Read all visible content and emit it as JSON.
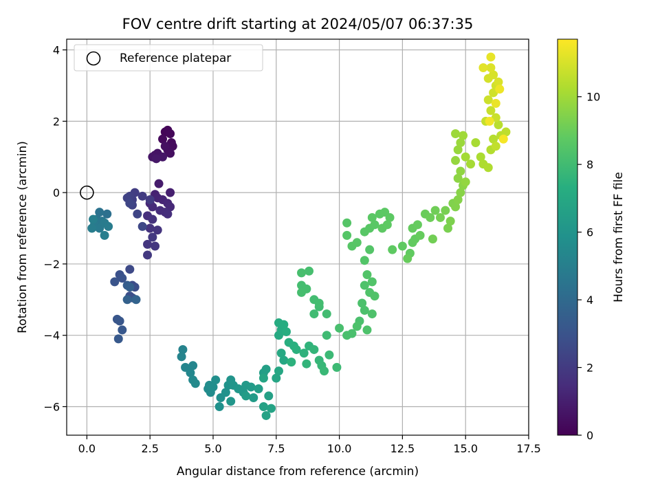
{
  "chart_data": {
    "type": "scatter",
    "title": "FOV centre drift starting at 2024/05/07 06:37:35",
    "xlabel": "Angular distance from reference (arcmin)",
    "ylabel": "Rotation from reference (arcmin)",
    "colorbar_label": "Hours from first FF file",
    "xlim": [
      -0.8,
      17.5
    ],
    "ylim": [
      -6.8,
      4.3
    ],
    "xticks": [
      0.0,
      2.5,
      5.0,
      7.5,
      10.0,
      12.5,
      15.0,
      17.5
    ],
    "xtick_labels": [
      "0.0",
      "2.5",
      "5.0",
      "7.5",
      "10.0",
      "12.5",
      "15.0",
      "17.5"
    ],
    "yticks": [
      -6,
      -4,
      -2,
      0,
      2,
      4
    ],
    "ytick_labels": [
      "−6",
      "−4",
      "−2",
      "0",
      "2",
      "4"
    ],
    "colorbar_range": [
      0,
      11.7
    ],
    "colorbar_ticks": [
      0,
      2,
      4,
      6,
      8,
      10
    ],
    "colorbar_tick_labels": [
      "0",
      "2",
      "4",
      "6",
      "8",
      "10"
    ],
    "colormap": "viridis",
    "grid": true,
    "legend": {
      "position": "top-left",
      "label": "Reference platepar"
    },
    "reference_point": {
      "x": 0.0,
      "y": 0.0
    },
    "points": [
      {
        "x": 3.1,
        "y": 1.7,
        "c": 0.1
      },
      {
        "x": 3.2,
        "y": 1.75,
        "c": 0.15
      },
      {
        "x": 3.3,
        "y": 1.65,
        "c": 0.2
      },
      {
        "x": 3.0,
        "y": 1.5,
        "c": 0.25
      },
      {
        "x": 3.35,
        "y": 1.4,
        "c": 0.3
      },
      {
        "x": 3.4,
        "y": 1.3,
        "c": 0.35
      },
      {
        "x": 3.2,
        "y": 1.2,
        "c": 0.4
      },
      {
        "x": 3.3,
        "y": 1.1,
        "c": 0.45
      },
      {
        "x": 3.1,
        "y": 1.3,
        "c": 0.5
      },
      {
        "x": 2.7,
        "y": 1.05,
        "c": 0.55
      },
      {
        "x": 2.8,
        "y": 1.1,
        "c": 0.6
      },
      {
        "x": 2.6,
        "y": 1.0,
        "c": 0.65
      },
      {
        "x": 3.0,
        "y": 1.0,
        "c": 0.7
      },
      {
        "x": 2.75,
        "y": 0.95,
        "c": 0.75
      },
      {
        "x": 2.85,
        "y": 0.25,
        "c": 0.9
      },
      {
        "x": 3.3,
        "y": 0.0,
        "c": 1.0
      },
      {
        "x": 2.7,
        "y": -0.05,
        "c": 1.1
      },
      {
        "x": 2.8,
        "y": -0.15,
        "c": 1.15
      },
      {
        "x": 3.0,
        "y": -0.2,
        "c": 1.2
      },
      {
        "x": 2.5,
        "y": -0.3,
        "c": 1.25
      },
      {
        "x": 3.2,
        "y": -0.3,
        "c": 1.3
      },
      {
        "x": 3.3,
        "y": -0.4,
        "c": 1.35
      },
      {
        "x": 2.6,
        "y": -0.4,
        "c": 1.4
      },
      {
        "x": 2.9,
        "y": -0.5,
        "c": 1.45
      },
      {
        "x": 3.1,
        "y": -0.55,
        "c": 1.5
      },
      {
        "x": 3.2,
        "y": -0.6,
        "c": 1.55
      },
      {
        "x": 2.4,
        "y": -0.65,
        "c": 1.6
      },
      {
        "x": 2.6,
        "y": -0.75,
        "c": 1.65
      },
      {
        "x": 2.5,
        "y": -1.0,
        "c": 1.7
      },
      {
        "x": 2.8,
        "y": -1.05,
        "c": 1.75
      },
      {
        "x": 2.4,
        "y": -1.45,
        "c": 1.8
      },
      {
        "x": 2.7,
        "y": -1.5,
        "c": 1.85
      },
      {
        "x": 2.6,
        "y": -1.25,
        "c": 1.9
      },
      {
        "x": 2.4,
        "y": -1.75,
        "c": 1.95
      },
      {
        "x": 2.5,
        "y": -0.2,
        "c": 2.0
      },
      {
        "x": 2.2,
        "y": -0.1,
        "c": 2.05
      },
      {
        "x": 1.9,
        "y": 0.0,
        "c": 2.1
      },
      {
        "x": 1.8,
        "y": -0.2,
        "c": 2.15
      },
      {
        "x": 1.7,
        "y": -0.1,
        "c": 2.2
      },
      {
        "x": 1.6,
        "y": -0.15,
        "c": 2.3
      },
      {
        "x": 1.8,
        "y": -0.35,
        "c": 2.35
      },
      {
        "x": 2.0,
        "y": -0.6,
        "c": 2.4
      },
      {
        "x": 1.7,
        "y": -0.3,
        "c": 2.45
      },
      {
        "x": 2.2,
        "y": -0.95,
        "c": 2.5
      },
      {
        "x": 1.7,
        "y": -2.15,
        "c": 2.6
      },
      {
        "x": 1.8,
        "y": -2.6,
        "c": 2.7
      },
      {
        "x": 1.9,
        "y": -2.65,
        "c": 2.75
      },
      {
        "x": 1.7,
        "y": -2.9,
        "c": 2.8
      },
      {
        "x": 1.8,
        "y": -2.95,
        "c": 2.85
      },
      {
        "x": 1.3,
        "y": -2.3,
        "c": 2.9
      },
      {
        "x": 1.4,
        "y": -2.4,
        "c": 2.95
      },
      {
        "x": 1.1,
        "y": -2.5,
        "c": 3.0
      },
      {
        "x": 1.2,
        "y": -3.55,
        "c": 3.1
      },
      {
        "x": 1.3,
        "y": -3.6,
        "c": 3.15
      },
      {
        "x": 1.4,
        "y": -3.85,
        "c": 3.2
      },
      {
        "x": 1.25,
        "y": -4.1,
        "c": 3.25
      },
      {
        "x": 1.6,
        "y": -2.6,
        "c": 3.4
      },
      {
        "x": 1.7,
        "y": -2.65,
        "c": 3.5
      },
      {
        "x": 1.6,
        "y": -3.0,
        "c": 3.6
      },
      {
        "x": 1.95,
        "y": -3.0,
        "c": 3.7
      },
      {
        "x": 0.8,
        "y": -0.6,
        "c": 4.3
      },
      {
        "x": 0.5,
        "y": -0.55,
        "c": 4.4
      },
      {
        "x": 0.4,
        "y": -0.75,
        "c": 4.5
      },
      {
        "x": 0.6,
        "y": -0.8,
        "c": 4.6
      },
      {
        "x": 0.3,
        "y": -0.9,
        "c": 4.7
      },
      {
        "x": 0.5,
        "y": -1.0,
        "c": 4.75
      },
      {
        "x": 0.7,
        "y": -0.85,
        "c": 4.8
      },
      {
        "x": 0.85,
        "y": -0.95,
        "c": 4.85
      },
      {
        "x": 0.2,
        "y": -1.0,
        "c": 4.9
      },
      {
        "x": 0.7,
        "y": -1.2,
        "c": 4.95
      },
      {
        "x": 0.25,
        "y": -0.75,
        "c": 5.0
      },
      {
        "x": 3.8,
        "y": -4.4,
        "c": 5.2
      },
      {
        "x": 3.75,
        "y": -4.6,
        "c": 5.25
      },
      {
        "x": 3.9,
        "y": -4.9,
        "c": 5.3
      },
      {
        "x": 4.2,
        "y": -4.85,
        "c": 5.35
      },
      {
        "x": 4.1,
        "y": -5.05,
        "c": 5.4
      },
      {
        "x": 4.2,
        "y": -5.25,
        "c": 5.45
      },
      {
        "x": 4.3,
        "y": -5.35,
        "c": 5.5
      },
      {
        "x": 4.8,
        "y": -5.5,
        "c": 5.55
      },
      {
        "x": 4.9,
        "y": -5.6,
        "c": 5.6
      },
      {
        "x": 4.85,
        "y": -5.4,
        "c": 5.65
      },
      {
        "x": 5.0,
        "y": -5.45,
        "c": 5.7
      },
      {
        "x": 5.1,
        "y": -5.25,
        "c": 5.75
      },
      {
        "x": 5.3,
        "y": -5.75,
        "c": 5.8
      },
      {
        "x": 5.25,
        "y": -6.0,
        "c": 5.85
      },
      {
        "x": 5.5,
        "y": -5.6,
        "c": 5.9
      },
      {
        "x": 5.6,
        "y": -5.4,
        "c": 5.95
      },
      {
        "x": 5.7,
        "y": -5.25,
        "c": 6.0
      },
      {
        "x": 5.8,
        "y": -5.4,
        "c": 6.05
      },
      {
        "x": 5.7,
        "y": -5.85,
        "c": 6.1
      },
      {
        "x": 6.0,
        "y": -5.5,
        "c": 6.15
      },
      {
        "x": 6.2,
        "y": -5.6,
        "c": 6.2
      },
      {
        "x": 6.3,
        "y": -5.4,
        "c": 6.25
      },
      {
        "x": 6.5,
        "y": -5.45,
        "c": 6.3
      },
      {
        "x": 6.6,
        "y": -5.75,
        "c": 6.35
      },
      {
        "x": 6.3,
        "y": -5.7,
        "c": 6.4
      },
      {
        "x": 6.8,
        "y": -5.5,
        "c": 6.45
      },
      {
        "x": 7.0,
        "y": -5.05,
        "c": 6.5
      },
      {
        "x": 7.1,
        "y": -4.95,
        "c": 6.55
      },
      {
        "x": 7.2,
        "y": -5.7,
        "c": 6.6
      },
      {
        "x": 7.0,
        "y": -6.0,
        "c": 6.65
      },
      {
        "x": 7.1,
        "y": -6.25,
        "c": 6.7
      },
      {
        "x": 7.3,
        "y": -6.05,
        "c": 6.75
      },
      {
        "x": 7.0,
        "y": -5.2,
        "c": 6.8
      },
      {
        "x": 7.5,
        "y": -5.2,
        "c": 6.85
      },
      {
        "x": 7.6,
        "y": -5.0,
        "c": 6.9
      },
      {
        "x": 7.8,
        "y": -4.7,
        "c": 6.95
      },
      {
        "x": 7.7,
        "y": -4.5,
        "c": 7.0
      },
      {
        "x": 7.6,
        "y": -4.0,
        "c": 7.05
      },
      {
        "x": 7.7,
        "y": -3.85,
        "c": 7.1
      },
      {
        "x": 7.6,
        "y": -3.65,
        "c": 7.15
      },
      {
        "x": 7.8,
        "y": -3.7,
        "c": 7.2
      },
      {
        "x": 7.9,
        "y": -3.9,
        "c": 7.25
      },
      {
        "x": 8.0,
        "y": -4.2,
        "c": 7.3
      },
      {
        "x": 8.2,
        "y": -4.3,
        "c": 7.35
      },
      {
        "x": 8.3,
        "y": -4.4,
        "c": 7.4
      },
      {
        "x": 8.1,
        "y": -4.75,
        "c": 7.45
      },
      {
        "x": 8.6,
        "y": -4.5,
        "c": 7.5
      },
      {
        "x": 8.8,
        "y": -4.3,
        "c": 7.55
      },
      {
        "x": 8.7,
        "y": -4.8,
        "c": 7.6
      },
      {
        "x": 9.0,
        "y": -4.4,
        "c": 7.65
      },
      {
        "x": 9.2,
        "y": -4.7,
        "c": 7.7
      },
      {
        "x": 9.3,
        "y": -4.85,
        "c": 7.75
      },
      {
        "x": 9.4,
        "y": -5.0,
        "c": 7.8
      },
      {
        "x": 9.6,
        "y": -4.55,
        "c": 7.85
      },
      {
        "x": 9.9,
        "y": -4.9,
        "c": 7.9
      },
      {
        "x": 9.5,
        "y": -4.0,
        "c": 7.95
      },
      {
        "x": 9.0,
        "y": -3.4,
        "c": 8.0
      },
      {
        "x": 9.2,
        "y": -3.2,
        "c": 8.02
      },
      {
        "x": 9.5,
        "y": -3.4,
        "c": 8.04
      },
      {
        "x": 9.0,
        "y": -3.0,
        "c": 8.06
      },
      {
        "x": 9.2,
        "y": -3.1,
        "c": 8.08
      },
      {
        "x": 8.5,
        "y": -2.6,
        "c": 8.1
      },
      {
        "x": 8.7,
        "y": -2.7,
        "c": 8.12
      },
      {
        "x": 8.5,
        "y": -2.8,
        "c": 8.14
      },
      {
        "x": 8.8,
        "y": -2.2,
        "c": 8.16
      },
      {
        "x": 8.5,
        "y": -2.25,
        "c": 8.18
      },
      {
        "x": 10.0,
        "y": -3.8,
        "c": 8.2
      },
      {
        "x": 10.3,
        "y": -4.0,
        "c": 8.22
      },
      {
        "x": 10.5,
        "y": -3.95,
        "c": 8.24
      },
      {
        "x": 10.8,
        "y": -3.6,
        "c": 8.26
      },
      {
        "x": 10.9,
        "y": -3.1,
        "c": 8.28
      },
      {
        "x": 11.0,
        "y": -3.3,
        "c": 8.3
      },
      {
        "x": 10.7,
        "y": -3.75,
        "c": 8.32
      },
      {
        "x": 11.1,
        "y": -3.85,
        "c": 8.34
      },
      {
        "x": 11.3,
        "y": -3.4,
        "c": 8.36
      },
      {
        "x": 11.0,
        "y": -2.6,
        "c": 8.38
      },
      {
        "x": 11.2,
        "y": -2.8,
        "c": 8.4
      },
      {
        "x": 11.4,
        "y": -2.9,
        "c": 8.42
      },
      {
        "x": 11.3,
        "y": -2.5,
        "c": 8.44
      },
      {
        "x": 11.1,
        "y": -2.3,
        "c": 8.46
      },
      {
        "x": 11.0,
        "y": -1.9,
        "c": 8.48
      },
      {
        "x": 11.2,
        "y": -1.6,
        "c": 8.5
      },
      {
        "x": 10.3,
        "y": -0.85,
        "c": 8.52
      },
      {
        "x": 10.3,
        "y": -1.2,
        "c": 8.54
      },
      {
        "x": 10.5,
        "y": -1.5,
        "c": 8.56
      },
      {
        "x": 10.7,
        "y": -1.4,
        "c": 8.58
      },
      {
        "x": 11.0,
        "y": -1.1,
        "c": 8.6
      },
      {
        "x": 11.2,
        "y": -1.0,
        "c": 8.62
      },
      {
        "x": 11.4,
        "y": -0.9,
        "c": 8.64
      },
      {
        "x": 11.3,
        "y": -0.7,
        "c": 8.66
      },
      {
        "x": 11.6,
        "y": -0.6,
        "c": 8.68
      },
      {
        "x": 11.8,
        "y": -0.55,
        "c": 8.7
      },
      {
        "x": 12.0,
        "y": -0.7,
        "c": 8.72
      },
      {
        "x": 11.7,
        "y": -1.0,
        "c": 8.74
      },
      {
        "x": 11.9,
        "y": -0.9,
        "c": 8.76
      },
      {
        "x": 12.1,
        "y": -1.6,
        "c": 8.78
      },
      {
        "x": 12.5,
        "y": -1.5,
        "c": 8.8
      },
      {
        "x": 12.8,
        "y": -1.7,
        "c": 8.82
      },
      {
        "x": 12.9,
        "y": -1.4,
        "c": 8.84
      },
      {
        "x": 13.0,
        "y": -1.3,
        "c": 8.86
      },
      {
        "x": 12.9,
        "y": -1.0,
        "c": 8.88
      },
      {
        "x": 13.1,
        "y": -0.9,
        "c": 8.9
      },
      {
        "x": 13.2,
        "y": -1.2,
        "c": 8.92
      },
      {
        "x": 12.7,
        "y": -1.85,
        "c": 8.94
      },
      {
        "x": 13.4,
        "y": -0.6,
        "c": 9.0
      },
      {
        "x": 13.6,
        "y": -0.7,
        "c": 9.05
      },
      {
        "x": 13.8,
        "y": -0.5,
        "c": 9.1
      },
      {
        "x": 13.7,
        "y": -1.3,
        "c": 9.15
      },
      {
        "x": 14.0,
        "y": -0.7,
        "c": 9.2
      },
      {
        "x": 14.2,
        "y": -0.5,
        "c": 9.25
      },
      {
        "x": 14.3,
        "y": -1.0,
        "c": 9.3
      },
      {
        "x": 14.4,
        "y": -0.8,
        "c": 9.35
      },
      {
        "x": 14.5,
        "y": -0.3,
        "c": 9.4
      },
      {
        "x": 14.6,
        "y": -0.4,
        "c": 9.45
      },
      {
        "x": 14.7,
        "y": -0.2,
        "c": 9.5
      },
      {
        "x": 14.8,
        "y": 0.0,
        "c": 9.55
      },
      {
        "x": 14.9,
        "y": 0.2,
        "c": 9.6
      },
      {
        "x": 14.7,
        "y": 0.4,
        "c": 9.65
      },
      {
        "x": 14.8,
        "y": 0.6,
        "c": 9.7
      },
      {
        "x": 15.0,
        "y": 0.3,
        "c": 9.75
      },
      {
        "x": 14.6,
        "y": 0.9,
        "c": 9.8
      },
      {
        "x": 14.7,
        "y": 1.2,
        "c": 9.85
      },
      {
        "x": 14.8,
        "y": 1.4,
        "c": 9.9
      },
      {
        "x": 14.6,
        "y": 1.65,
        "c": 9.95
      },
      {
        "x": 14.9,
        "y": 1.6,
        "c": 10.0
      },
      {
        "x": 15.0,
        "y": 1.0,
        "c": 10.05
      },
      {
        "x": 15.2,
        "y": 0.8,
        "c": 10.1
      },
      {
        "x": 15.4,
        "y": 1.4,
        "c": 10.15
      },
      {
        "x": 15.6,
        "y": 1.0,
        "c": 10.2
      },
      {
        "x": 15.7,
        "y": 0.8,
        "c": 10.25
      },
      {
        "x": 15.9,
        "y": 0.7,
        "c": 10.3
      },
      {
        "x": 16.0,
        "y": 1.2,
        "c": 10.35
      },
      {
        "x": 16.1,
        "y": 1.5,
        "c": 10.4
      },
      {
        "x": 16.3,
        "y": 1.9,
        "c": 10.45
      },
      {
        "x": 16.4,
        "y": 1.6,
        "c": 10.5
      },
      {
        "x": 16.6,
        "y": 1.7,
        "c": 10.55
      },
      {
        "x": 16.2,
        "y": 1.3,
        "c": 10.6
      },
      {
        "x": 15.8,
        "y": 2.0,
        "c": 10.65
      },
      {
        "x": 16.0,
        "y": 2.3,
        "c": 10.7
      },
      {
        "x": 16.2,
        "y": 2.1,
        "c": 10.75
      },
      {
        "x": 15.9,
        "y": 2.6,
        "c": 10.8
      },
      {
        "x": 16.1,
        "y": 2.8,
        "c": 10.85
      },
      {
        "x": 16.2,
        "y": 3.0,
        "c": 10.9
      },
      {
        "x": 15.9,
        "y": 3.2,
        "c": 10.95
      },
      {
        "x": 16.1,
        "y": 3.3,
        "c": 11.0
      },
      {
        "x": 16.3,
        "y": 3.1,
        "c": 11.05
      },
      {
        "x": 16.0,
        "y": 3.5,
        "c": 11.1
      },
      {
        "x": 15.7,
        "y": 3.5,
        "c": 11.2
      },
      {
        "x": 16.0,
        "y": 3.8,
        "c": 11.3
      },
      {
        "x": 16.2,
        "y": 2.5,
        "c": 11.35
      },
      {
        "x": 16.35,
        "y": 2.9,
        "c": 11.4
      },
      {
        "x": 15.95,
        "y": 2.0,
        "c": 11.5
      },
      {
        "x": 16.5,
        "y": 1.5,
        "c": 11.55
      }
    ]
  }
}
